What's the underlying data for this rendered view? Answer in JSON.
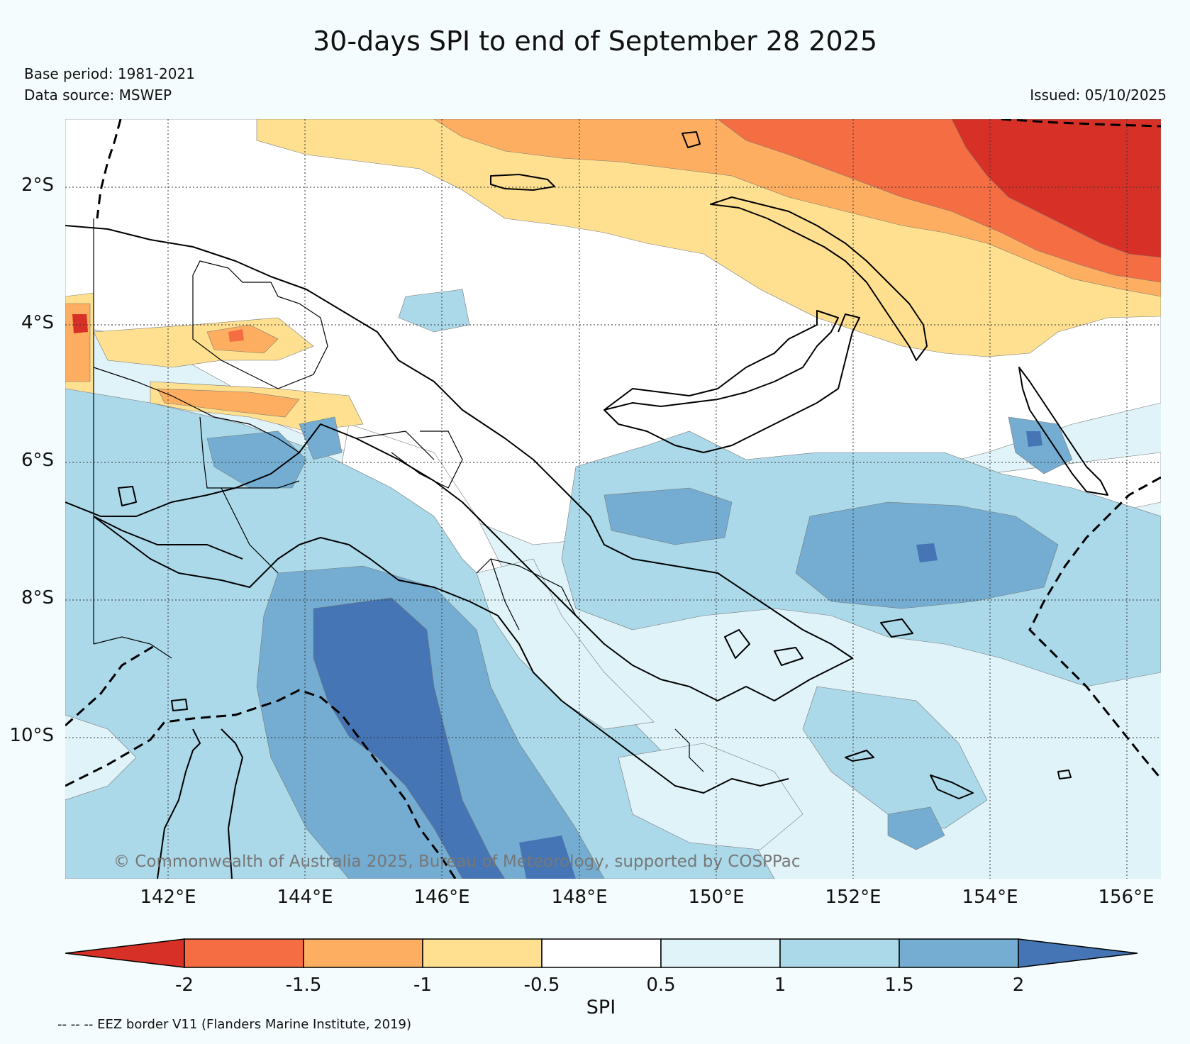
{
  "title": "30-days SPI to end of September 28 2025",
  "base_period": "Base period: 1981-2021",
  "data_source": "Data source: MSWEP",
  "issued": "Issued: 05/10/2025",
  "copyright": "© Commonwealth of Australia 2025, Bureau of Meteorology, supported by COSPPac",
  "eez_note": "-- -- -- EEZ border V11 (Flanders Marine Institute, 2019)",
  "axes": {
    "lat_labels": [
      "2°S",
      "4°S",
      "6°S",
      "8°S",
      "10°S"
    ],
    "lon_labels": [
      "142°E",
      "144°E",
      "146°E",
      "148°E",
      "150°E",
      "152°E",
      "154°E",
      "156°E"
    ]
  },
  "colorbar": {
    "title": "SPI",
    "tick_labels": [
      "-2",
      "-1.5",
      "-1",
      "-0.5",
      "0.5",
      "1",
      "1.5",
      "2"
    ],
    "colors": {
      "below_m2": "#d73027",
      "m2_m1_5": "#f46d43",
      "m1_5_m1": "#fdae61",
      "m1_m0_5": "#fee090",
      "m0_5_0_5": "#ffffff",
      "p0_5_1": "#e0f3f8",
      "p1_1_5": "#abd9e9",
      "p1_5_2": "#74add1",
      "above_2": "#4575b4"
    }
  }
}
